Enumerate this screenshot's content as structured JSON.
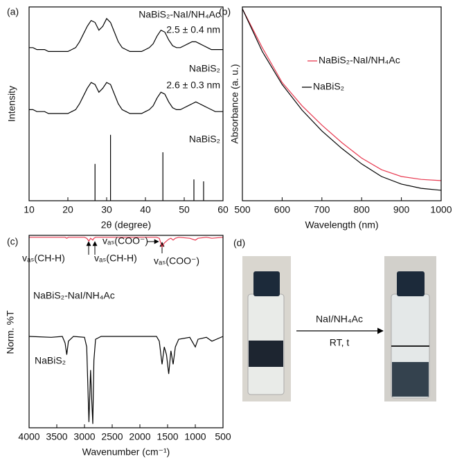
{
  "chart_data": [
    {
      "type": "line",
      "panel": "(a)",
      "xlabel": "2θ (degree)",
      "ylabel": "Intensity",
      "xlim": [
        10,
        60
      ],
      "xticks": [
        10,
        20,
        30,
        40,
        50,
        60
      ],
      "ylim": [
        0,
        100
      ],
      "x": [
        10,
        11,
        12,
        13,
        14,
        15,
        16,
        17,
        18,
        19,
        20,
        21,
        22,
        23,
        24,
        25,
        26,
        27,
        28,
        29,
        30,
        31,
        32,
        33,
        34,
        35,
        36,
        37,
        38,
        39,
        40,
        41,
        42,
        43,
        44,
        45,
        46,
        47,
        48,
        49,
        50,
        51,
        52,
        53,
        54,
        55,
        56,
        57,
        58,
        59,
        60
      ],
      "series": [
        {
          "name": "NaBiS₂-NaI/NH₄Ac",
          "annotation": "2.5 ± 0.4 nm",
          "color": "#000000",
          "values": [
            79,
            79,
            78,
            78,
            78,
            77,
            77,
            77,
            77,
            77,
            77,
            78,
            79,
            82,
            86,
            90,
            93,
            92,
            88,
            90,
            94,
            92,
            87,
            82,
            79,
            78,
            77,
            77,
            77,
            77,
            78,
            79,
            81,
            85,
            88,
            87,
            83,
            80,
            79,
            79,
            80,
            81,
            82,
            82,
            81,
            80,
            79,
            78,
            78,
            78,
            78
          ]
        },
        {
          "name": "NaBiS₂",
          "annotation": "2.6 ± 0.3 nm",
          "color": "#000000",
          "values": [
            47,
            47,
            46,
            46,
            46,
            45,
            45,
            45,
            45,
            45,
            45,
            46,
            47,
            50,
            54,
            58,
            61,
            60,
            56,
            58,
            61,
            60,
            55,
            50,
            47,
            46,
            45,
            45,
            45,
            45,
            46,
            47,
            49,
            53,
            56,
            55,
            51,
            48,
            47,
            47,
            48,
            49,
            50,
            51,
            50,
            49,
            48,
            47,
            46,
            46,
            46
          ]
        }
      ],
      "reference": {
        "name": "NaBiS₂",
        "color": "#000000",
        "x": [
          27,
          31,
          44.5,
          52.5,
          55
        ],
        "values": [
          19,
          34,
          25,
          11,
          10
        ]
      }
    },
    {
      "type": "line",
      "panel": "(b)",
      "xlabel": "Wavelength (nm)",
      "ylabel": "Absorbance (a. u.)",
      "xlim": [
        500,
        1000
      ],
      "xticks": [
        500,
        600,
        700,
        800,
        900,
        1000
      ],
      "ylim": [
        0,
        100
      ],
      "x": [
        500,
        550,
        600,
        650,
        700,
        750,
        800,
        850,
        900,
        950,
        1000
      ],
      "series": [
        {
          "name": "NaBiS₂-NaI/NH₄Ac",
          "color": "#e8384f",
          "values": [
            99,
            79,
            61,
            49,
            39,
            30,
            22,
            16,
            12.5,
            11,
            10.4
          ]
        },
        {
          "name": "NaBiS₂",
          "color": "#000000",
          "values": [
            99,
            77,
            60,
            46.8,
            36,
            27,
            19,
            12.5,
            8.6,
            6.4,
            5.4
          ]
        }
      ]
    },
    {
      "type": "line",
      "panel": "(c)",
      "xlabel": "Wavenumber (cm⁻¹)",
      "ylabel": "Norm. %T",
      "xlim": [
        4000,
        500
      ],
      "xticks": [
        4000,
        3500,
        3000,
        2500,
        2000,
        1500,
        1000,
        500
      ],
      "ylim": [
        0,
        100
      ],
      "x": [
        4000,
        3600,
        3400,
        3350,
        3320,
        3290,
        3200,
        3000,
        2960,
        2920,
        2890,
        2870,
        2850,
        2830,
        2800,
        2700,
        2000,
        1700,
        1650,
        1600,
        1560,
        1520,
        1480,
        1440,
        1400,
        1360,
        1300,
        1100,
        1000,
        950,
        800,
        700,
        500
      ],
      "series": [
        {
          "name": "NaBiS₂-NaI/NH₄Ac",
          "color": "#e8384f",
          "values": [
            99,
            99,
            99,
            99,
            98.5,
            99,
            99,
            99,
            98.5,
            97,
            98.5,
            98,
            97.5,
            98.5,
            99,
            99,
            99,
            99,
            98.5,
            94,
            96,
            97,
            98,
            98.5,
            97.5,
            98.5,
            99,
            98.5,
            97.5,
            98.5,
            99,
            98.5,
            99
          ]
        },
        {
          "name": "NaBiS₂",
          "color": "#000000",
          "values": [
            47.5,
            47,
            47.5,
            44,
            38,
            45,
            47.5,
            47,
            42,
            3,
            30,
            15,
            2,
            35,
            46,
            47.5,
            47.5,
            47.5,
            45,
            33,
            42,
            38,
            28,
            40,
            33,
            42,
            46,
            47,
            42,
            46,
            47,
            45,
            47.5
          ]
        }
      ],
      "annotations": [
        "vₐₛ(CH-H)",
        "vₐₛ(CH-H)",
        "vₐₛ(COO⁻)",
        "vₐₛ(COO⁻)"
      ]
    }
  ],
  "panel_d": {
    "label": "(d)",
    "reagent": "NaI/NH₄Ac",
    "condition": "RT, t"
  }
}
